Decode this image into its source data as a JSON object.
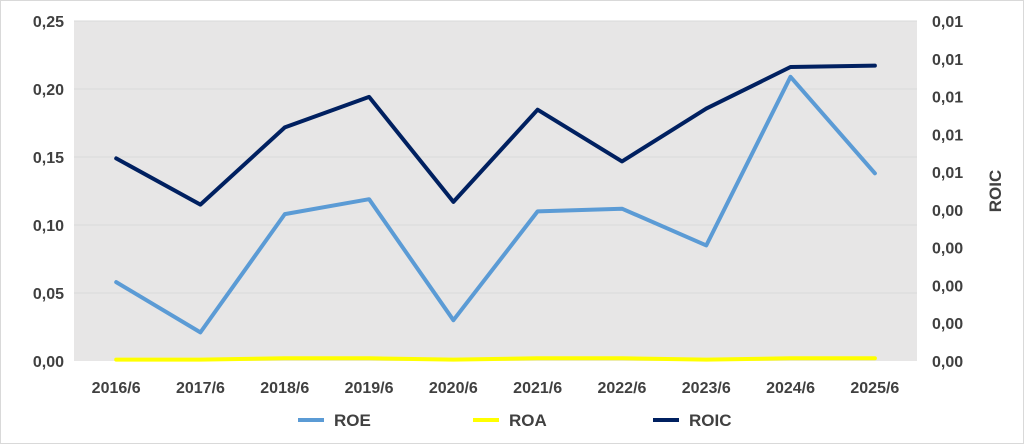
{
  "chart_data": {
    "type": "line",
    "categories": [
      "2016/6",
      "2017/6",
      "2018/6",
      "2019/6",
      "2020/6",
      "2021/6",
      "2022/6",
      "2023/6",
      "2024/6",
      "2025/6"
    ],
    "series": [
      {
        "name": "ROE",
        "axis": "left",
        "color": "#5b9bd5",
        "values": [
          0.058,
          0.021,
          0.108,
          0.119,
          0.03,
          0.11,
          0.112,
          0.085,
          0.209,
          0.138
        ]
      },
      {
        "name": "ROA",
        "axis": "left",
        "color": "#ffff00",
        "values": [
          0.001,
          0.001,
          0.002,
          0.002,
          0.001,
          0.002,
          0.002,
          0.001,
          0.002,
          0.002
        ]
      },
      {
        "name": "ROIC",
        "axis": "right",
        "color": "#002060",
        "values": [
          0.00745,
          0.00575,
          0.00859,
          0.00971,
          0.00585,
          0.00924,
          0.00734,
          0.00928,
          0.01081,
          0.01086
        ]
      }
    ],
    "ylim_left": [
      0,
      0.25
    ],
    "yticks_left": [
      "0,00",
      "0,05",
      "0,10",
      "0,15",
      "0,20",
      "0,25"
    ],
    "ylim_right": [
      0,
      0.0125
    ],
    "yticks_right": [
      "0,00",
      "0,00",
      "0,00",
      "0,00",
      "0,00",
      "0,01",
      "0,01",
      "0,01",
      "0,01",
      "0,01"
    ],
    "y2label": "ROIC",
    "grid": true,
    "plot_background": "#e7e6e6",
    "legend_position": "bottom"
  }
}
